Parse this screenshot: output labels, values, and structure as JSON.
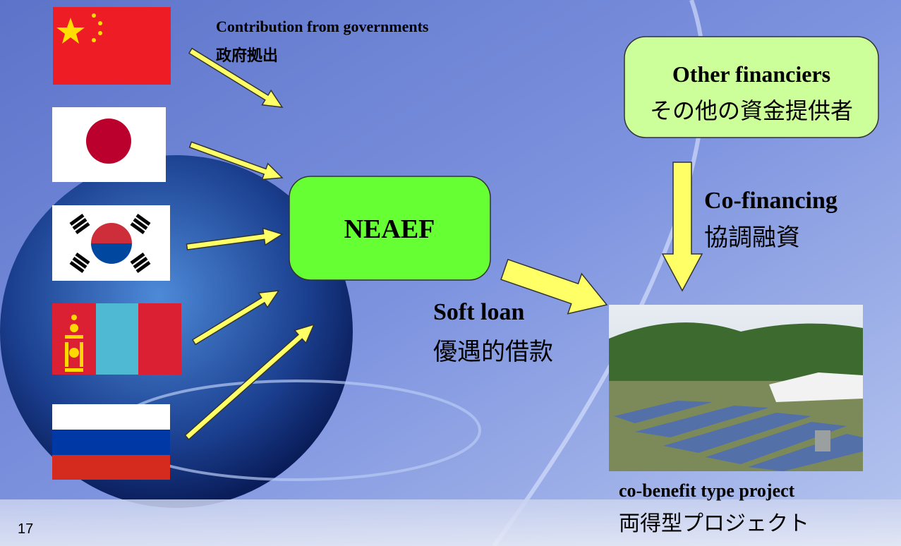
{
  "contribution": {
    "en": "Contribution from governments",
    "ja": "政府拠出"
  },
  "fund": {
    "label": "NEAEF"
  },
  "other_financiers": {
    "en": "Other financiers",
    "ja": "その他の資金提供者"
  },
  "co_financing": {
    "en": "Co-financing",
    "ja": "協調融資"
  },
  "soft_loan": {
    "en": "Soft loan",
    "ja": "優遇的借款"
  },
  "project": {
    "en": "co-benefit type project",
    "ja": "両得型プロジェクト"
  },
  "page_number": "17"
}
